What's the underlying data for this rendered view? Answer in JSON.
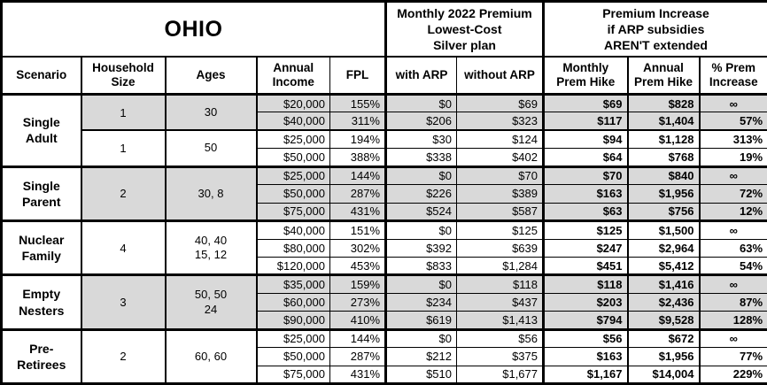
{
  "chart_data": {
    "type": "table",
    "title": "OHIO",
    "header": {
      "premium_2022": "Monthly 2022 Premium\nLowest-Cost\nSilver plan",
      "premium_increase": "Premium Increase\nif ARP subsidies\nAREN'T extended",
      "columns": [
        "Scenario",
        "Household\nSize",
        "Ages",
        "Annual\nIncome",
        "FPL",
        "with ARP",
        "without ARP",
        "Monthly\nPrem Hike",
        "Annual\nPrem Hike",
        "% Prem\nIncrease"
      ]
    },
    "shading_color": "#d9d9d9",
    "groups": [
      {
        "scenario": "Single\nAdult",
        "subgroups": [
          {
            "household_size": "1",
            "ages": "30",
            "rows": [
              {
                "income": "$20,000",
                "fpl": "155%",
                "with_arp": "$0",
                "without_arp": "$69",
                "monthly_hike": "$69",
                "annual_hike": "$828",
                "pct_increase": "∞"
              },
              {
                "income": "$40,000",
                "fpl": "311%",
                "with_arp": "$206",
                "without_arp": "$323",
                "monthly_hike": "$117",
                "annual_hike": "$1,404",
                "pct_increase": "57%"
              }
            ]
          },
          {
            "household_size": "1",
            "ages": "50",
            "rows": [
              {
                "income": "$25,000",
                "fpl": "194%",
                "with_arp": "$30",
                "without_arp": "$124",
                "monthly_hike": "$94",
                "annual_hike": "$1,128",
                "pct_increase": "313%"
              },
              {
                "income": "$50,000",
                "fpl": "388%",
                "with_arp": "$338",
                "without_arp": "$402",
                "monthly_hike": "$64",
                "annual_hike": "$768",
                "pct_increase": "19%"
              }
            ]
          }
        ]
      },
      {
        "scenario": "Single\nParent",
        "subgroups": [
          {
            "household_size": "2",
            "ages": "30, 8",
            "rows": [
              {
                "income": "$25,000",
                "fpl": "144%",
                "with_arp": "$0",
                "without_arp": "$70",
                "monthly_hike": "$70",
                "annual_hike": "$840",
                "pct_increase": "∞"
              },
              {
                "income": "$50,000",
                "fpl": "287%",
                "with_arp": "$226",
                "without_arp": "$389",
                "monthly_hike": "$163",
                "annual_hike": "$1,956",
                "pct_increase": "72%"
              },
              {
                "income": "$75,000",
                "fpl": "431%",
                "with_arp": "$524",
                "without_arp": "$587",
                "monthly_hike": "$63",
                "annual_hike": "$756",
                "pct_increase": "12%"
              }
            ]
          }
        ]
      },
      {
        "scenario": "Nuclear\nFamily",
        "subgroups": [
          {
            "household_size": "4",
            "ages": "40, 40\n15, 12",
            "rows": [
              {
                "income": "$40,000",
                "fpl": "151%",
                "with_arp": "$0",
                "without_arp": "$125",
                "monthly_hike": "$125",
                "annual_hike": "$1,500",
                "pct_increase": "∞"
              },
              {
                "income": "$80,000",
                "fpl": "302%",
                "with_arp": "$392",
                "without_arp": "$639",
                "monthly_hike": "$247",
                "annual_hike": "$2,964",
                "pct_increase": "63%"
              },
              {
                "income": "$120,000",
                "fpl": "453%",
                "with_arp": "$833",
                "without_arp": "$1,284",
                "monthly_hike": "$451",
                "annual_hike": "$5,412",
                "pct_increase": "54%"
              }
            ]
          }
        ]
      },
      {
        "scenario": "Empty\nNesters",
        "subgroups": [
          {
            "household_size": "3",
            "ages": "50, 50\n24",
            "rows": [
              {
                "income": "$35,000",
                "fpl": "159%",
                "with_arp": "$0",
                "without_arp": "$118",
                "monthly_hike": "$118",
                "annual_hike": "$1,416",
                "pct_increase": "∞"
              },
              {
                "income": "$60,000",
                "fpl": "273%",
                "with_arp": "$234",
                "without_arp": "$437",
                "monthly_hike": "$203",
                "annual_hike": "$2,436",
                "pct_increase": "87%"
              },
              {
                "income": "$90,000",
                "fpl": "410%",
                "with_arp": "$619",
                "without_arp": "$1,413",
                "monthly_hike": "$794",
                "annual_hike": "$9,528",
                "pct_increase": "128%"
              }
            ]
          }
        ]
      },
      {
        "scenario": "Pre-\nRetirees",
        "subgroups": [
          {
            "household_size": "2",
            "ages": "60, 60",
            "rows": [
              {
                "income": "$25,000",
                "fpl": "144%",
                "with_arp": "$0",
                "without_arp": "$56",
                "monthly_hike": "$56",
                "annual_hike": "$672",
                "pct_increase": "∞"
              },
              {
                "income": "$50,000",
                "fpl": "287%",
                "with_arp": "$212",
                "without_arp": "$375",
                "monthly_hike": "$163",
                "annual_hike": "$1,956",
                "pct_increase": "77%"
              },
              {
                "income": "$75,000",
                "fpl": "431%",
                "with_arp": "$510",
                "without_arp": "$1,677",
                "monthly_hike": "$1,167",
                "annual_hike": "$14,004",
                "pct_increase": "229%"
              }
            ]
          }
        ]
      }
    ]
  }
}
